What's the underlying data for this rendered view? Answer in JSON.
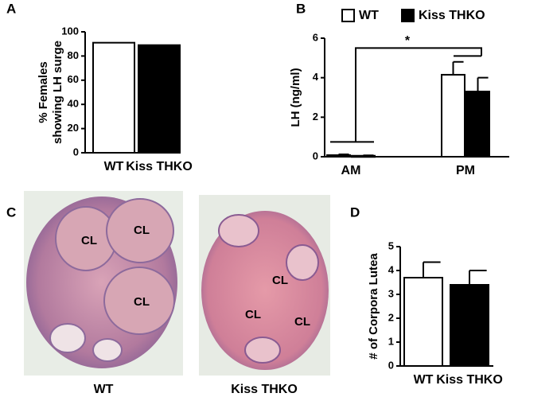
{
  "chart_data": [
    {
      "type": "bar",
      "panel": "A",
      "ylabel": [
        "% Females",
        "showing LH surge"
      ],
      "categories": [
        "WT",
        "Kiss THKO"
      ],
      "series": [
        {
          "name": "WT",
          "color": "#ffffff",
          "values": [
            91,
            null
          ]
        },
        {
          "name": "Kiss THKO",
          "color": "#000000",
          "values": [
            null,
            89
          ]
        }
      ],
      "ylim": [
        0,
        100
      ],
      "yticks": [
        0,
        20,
        40,
        60,
        80,
        100
      ]
    },
    {
      "type": "bar",
      "panel": "B",
      "ylabel": [
        "LH (ng/ml)"
      ],
      "legend": "top",
      "categories": [
        "AM",
        "PM"
      ],
      "series": [
        {
          "name": "WT",
          "color": "#ffffff",
          "values": [
            0.08,
            4.15
          ],
          "errors": [
            0.04,
            0.65
          ]
        },
        {
          "name": "Kiss THKO",
          "color": "#000000",
          "values": [
            0.05,
            3.3
          ],
          "errors": [
            0.02,
            0.7
          ]
        }
      ],
      "ylim": [
        0,
        6
      ],
      "yticks": [
        0,
        2,
        4,
        6
      ],
      "annotation": "*"
    },
    {
      "type": "bar",
      "panel": "D",
      "ylabel": [
        "# of Corpora Lutea"
      ],
      "categories": [
        "WT",
        "Kiss THKO"
      ],
      "series": [
        {
          "name": "WT",
          "color": "#ffffff",
          "values": [
            3.7,
            null
          ],
          "errors": [
            0.65,
            null
          ]
        },
        {
          "name": "Kiss THKO",
          "color": "#000000",
          "values": [
            null,
            3.4
          ],
          "errors": [
            null,
            0.6
          ]
        }
      ],
      "ylim": [
        0,
        5
      ],
      "yticks": [
        0,
        1,
        2,
        3,
        4,
        5
      ]
    }
  ],
  "panel_c": {
    "panel": "C",
    "images": [
      {
        "caption": "WT",
        "regions": [
          "CL",
          "CL",
          "CL"
        ]
      },
      {
        "caption": "Kiss THKO",
        "regions": [
          "CL",
          "CL",
          "CL"
        ]
      }
    ]
  }
}
